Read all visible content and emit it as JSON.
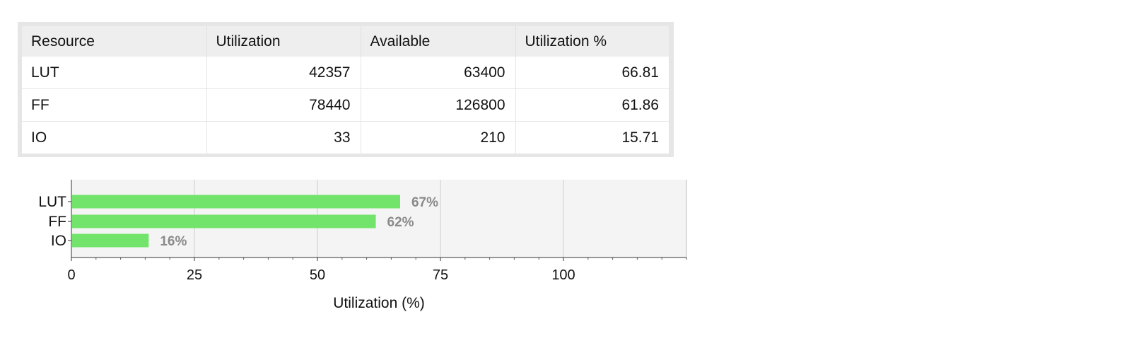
{
  "table": {
    "headers": [
      "Resource",
      "Utilization",
      "Available",
      "Utilization %"
    ],
    "rows": [
      {
        "resource": "LUT",
        "utilization": "42357",
        "available": "63400",
        "percent": "66.81"
      },
      {
        "resource": "FF",
        "utilization": "78440",
        "available": "126800",
        "percent": "61.86"
      },
      {
        "resource": "IO",
        "utilization": "33",
        "available": "210",
        "percent": "15.71"
      }
    ]
  },
  "chart_data": {
    "type": "bar",
    "orientation": "horizontal",
    "categories": [
      "LUT",
      "FF",
      "IO"
    ],
    "values": [
      66.81,
      61.86,
      15.71
    ],
    "data_labels": [
      "67%",
      "62%",
      "16%"
    ],
    "xlabel": "Utilization (%)",
    "ylabel": "",
    "title": "",
    "xlim": [
      0,
      125
    ],
    "xticks": [
      0,
      25,
      50,
      75,
      100
    ],
    "grid": true,
    "legend": "none",
    "colors": {
      "bar": "#72e46b",
      "plot_background": "#f4f4f4",
      "grid": "#cccccc",
      "data_label": "#8a8a8a"
    }
  }
}
